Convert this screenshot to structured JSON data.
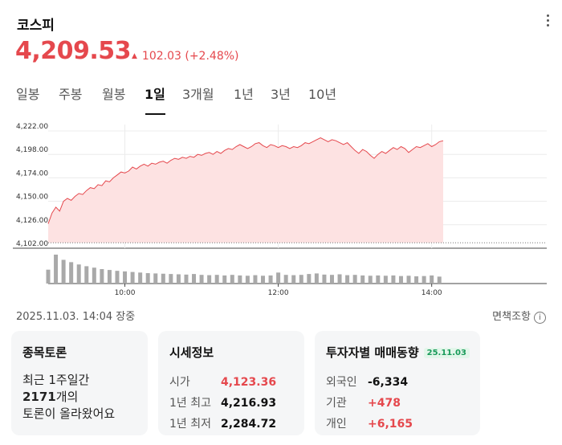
{
  "header": {
    "title": "코스피",
    "price": "4,209.53",
    "change_arrow": "▲",
    "change": "102.03 (+2.48%)",
    "more_icon": "more-vertical-icon"
  },
  "tabs": [
    {
      "label": "일봉",
      "active": false
    },
    {
      "label": "주봉",
      "active": false
    },
    {
      "label": "월봉",
      "active": false
    },
    {
      "label": "1일",
      "active": true
    },
    {
      "label": "3개월",
      "active": false
    },
    {
      "label": "1년",
      "active": false
    },
    {
      "label": "3년",
      "active": false
    },
    {
      "label": "10년",
      "active": false
    }
  ],
  "colors": {
    "up": "#e5484d",
    "area": "#fde2e2",
    "volume": "#a9a9a9",
    "positive_badge": "#1a9b5a"
  },
  "chart_data": {
    "type": "area",
    "y_ticks": [
      "4,222.00",
      "4,198.00",
      "4,174.00",
      "4,150.00",
      "4,126.00",
      "4,102.00"
    ],
    "ylim": [
      4102,
      4222
    ],
    "x_ticks": [
      {
        "label": "10:00",
        "minute": 60
      },
      {
        "label": "12:00",
        "minute": 180
      },
      {
        "label": "14:00",
        "minute": 300
      }
    ],
    "session_minutes": 390,
    "baseline": 4107.5,
    "price_series": [
      [
        0,
        4127
      ],
      [
        3,
        4138
      ],
      [
        6,
        4144
      ],
      [
        9,
        4140
      ],
      [
        12,
        4150
      ],
      [
        15,
        4153
      ],
      [
        18,
        4151
      ],
      [
        21,
        4155
      ],
      [
        24,
        4158
      ],
      [
        27,
        4157
      ],
      [
        30,
        4161
      ],
      [
        33,
        4164
      ],
      [
        36,
        4163
      ],
      [
        39,
        4167
      ],
      [
        42,
        4166
      ],
      [
        45,
        4171
      ],
      [
        48,
        4170
      ],
      [
        51,
        4174
      ],
      [
        54,
        4177
      ],
      [
        57,
        4180
      ],
      [
        60,
        4179
      ],
      [
        63,
        4181
      ],
      [
        66,
        4185
      ],
      [
        69,
        4183
      ],
      [
        72,
        4186
      ],
      [
        75,
        4188
      ],
      [
        78,
        4186
      ],
      [
        81,
        4189
      ],
      [
        84,
        4188
      ],
      [
        87,
        4190
      ],
      [
        90,
        4191
      ],
      [
        93,
        4189
      ],
      [
        96,
        4192
      ],
      [
        99,
        4194
      ],
      [
        102,
        4193
      ],
      [
        105,
        4195
      ],
      [
        108,
        4194
      ],
      [
        111,
        4196
      ],
      [
        114,
        4195
      ],
      [
        117,
        4198
      ],
      [
        120,
        4197
      ],
      [
        123,
        4199
      ],
      [
        126,
        4200
      ],
      [
        129,
        4198
      ],
      [
        132,
        4201
      ],
      [
        135,
        4199
      ],
      [
        138,
        4202
      ],
      [
        141,
        4204
      ],
      [
        144,
        4203
      ],
      [
        147,
        4206
      ],
      [
        150,
        4208
      ],
      [
        153,
        4206
      ],
      [
        156,
        4204
      ],
      [
        159,
        4206
      ],
      [
        162,
        4209
      ],
      [
        165,
        4210
      ],
      [
        168,
        4207
      ],
      [
        171,
        4205
      ],
      [
        174,
        4208
      ],
      [
        177,
        4207
      ],
      [
        180,
        4205
      ],
      [
        183,
        4207
      ],
      [
        186,
        4206
      ],
      [
        189,
        4204
      ],
      [
        192,
        4206
      ],
      [
        195,
        4205
      ],
      [
        198,
        4207
      ],
      [
        201,
        4210
      ],
      [
        204,
        4209
      ],
      [
        207,
        4211
      ],
      [
        210,
        4213
      ],
      [
        213,
        4215
      ],
      [
        216,
        4213
      ],
      [
        219,
        4211
      ],
      [
        222,
        4213
      ],
      [
        225,
        4212
      ],
      [
        228,
        4210
      ],
      [
        231,
        4208
      ],
      [
        234,
        4210
      ],
      [
        237,
        4206
      ],
      [
        240,
        4202
      ],
      [
        243,
        4199
      ],
      [
        246,
        4203
      ],
      [
        249,
        4201
      ],
      [
        252,
        4197
      ],
      [
        255,
        4194
      ],
      [
        258,
        4198
      ],
      [
        261,
        4201
      ],
      [
        264,
        4199
      ],
      [
        267,
        4202
      ],
      [
        270,
        4205
      ],
      [
        273,
        4203
      ],
      [
        276,
        4206
      ],
      [
        279,
        4204
      ],
      [
        282,
        4200
      ],
      [
        285,
        4203
      ],
      [
        288,
        4206
      ],
      [
        291,
        4205
      ],
      [
        294,
        4207
      ],
      [
        297,
        4209
      ],
      [
        300,
        4206
      ],
      [
        303,
        4208
      ],
      [
        306,
        4211
      ],
      [
        309,
        4212
      ]
    ],
    "volume_series": [
      [
        0,
        0.48
      ],
      [
        6,
        1.0
      ],
      [
        12,
        0.82
      ],
      [
        18,
        0.74
      ],
      [
        24,
        0.66
      ],
      [
        30,
        0.6
      ],
      [
        36,
        0.55
      ],
      [
        42,
        0.5
      ],
      [
        48,
        0.47
      ],
      [
        54,
        0.44
      ],
      [
        60,
        0.42
      ],
      [
        66,
        0.4
      ],
      [
        72,
        0.38
      ],
      [
        78,
        0.36
      ],
      [
        84,
        0.35
      ],
      [
        90,
        0.34
      ],
      [
        96,
        0.33
      ],
      [
        102,
        0.32
      ],
      [
        108,
        0.31
      ],
      [
        114,
        0.33
      ],
      [
        120,
        0.3
      ],
      [
        126,
        0.29
      ],
      [
        132,
        0.3
      ],
      [
        138,
        0.28
      ],
      [
        144,
        0.3
      ],
      [
        150,
        0.28
      ],
      [
        156,
        0.27
      ],
      [
        162,
        0.29
      ],
      [
        168,
        0.27
      ],
      [
        174,
        0.28
      ],
      [
        180,
        0.38
      ],
      [
        186,
        0.3
      ],
      [
        192,
        0.29
      ],
      [
        198,
        0.3
      ],
      [
        204,
        0.33
      ],
      [
        210,
        0.35
      ],
      [
        216,
        0.31
      ],
      [
        222,
        0.3
      ],
      [
        228,
        0.32
      ],
      [
        234,
        0.29
      ],
      [
        240,
        0.3
      ],
      [
        246,
        0.28
      ],
      [
        252,
        0.27
      ],
      [
        258,
        0.28
      ],
      [
        264,
        0.27
      ],
      [
        270,
        0.28
      ],
      [
        276,
        0.26
      ],
      [
        282,
        0.27
      ],
      [
        288,
        0.25
      ],
      [
        294,
        0.26
      ],
      [
        300,
        0.28
      ],
      [
        306,
        0.24
      ]
    ]
  },
  "timestamp": "2025.11.03. 14:04 장중",
  "disclaimer": "면책조항",
  "disclaimer_icon": "info-icon",
  "cards": {
    "discussion": {
      "title": "종목토론",
      "line1": "최근 1주일간",
      "line2_count": "2171",
      "line2_suffix": "개의",
      "line3": "토론이 올라왔어요"
    },
    "market": {
      "title": "시세정보",
      "rows": [
        {
          "label": "시가",
          "value": "4,123.36"
        },
        {
          "label": "1년 최고",
          "value": "4,216.93"
        },
        {
          "label": "1년 최저",
          "value": "2,284.72"
        }
      ]
    },
    "investor": {
      "title": "투자자별 매매동향",
      "badge": "25.11.03",
      "rows": [
        {
          "label": "외국인",
          "value": "-6,334"
        },
        {
          "label": "기관",
          "value": "+478"
        },
        {
          "label": "개인",
          "value": "+6,165"
        }
      ]
    }
  }
}
